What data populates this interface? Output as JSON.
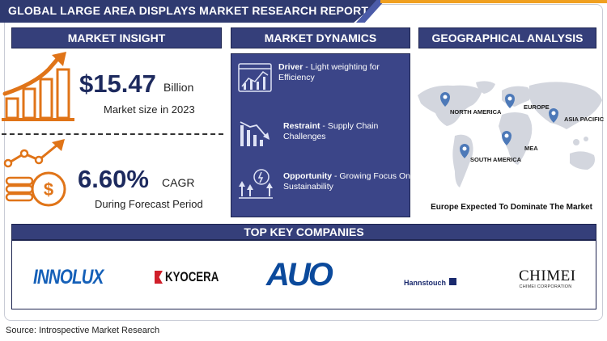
{
  "header": {
    "title": "GLOBAL LARGE AREA DISPLAYS MARKET RESEARCH REPORT"
  },
  "insight": {
    "heading": "MARKET INSIGHT",
    "market_value": "$15.47",
    "market_unit": "Billion",
    "market_caption": "Market size in 2023",
    "cagr_value": "6.60%",
    "cagr_label": "CAGR",
    "cagr_caption": "During Forecast Period"
  },
  "dynamics": {
    "heading": "MARKET DYNAMICS",
    "items": [
      {
        "label": "Driver",
        "sep": " - ",
        "text": "Light weighting for Efficiency",
        "icon": "chart-report-icon"
      },
      {
        "label": "Restraint",
        "sep": " - ",
        "text": "Supply Chain Challenges",
        "icon": "declining-chart-icon"
      },
      {
        "label": "Opportunity",
        "sep": " - ",
        "text": "Growing Focus On Sustainability",
        "icon": "growth-idea-icon"
      }
    ]
  },
  "geo": {
    "heading": "GEOGRAPHICAL ANALYSIS",
    "regions": [
      "NORTH AMERICA",
      "EUROPE",
      "ASIA PACIFIC",
      "MEA",
      "SOUTH AMERICA"
    ],
    "caption": "Europe Expected To Dominate The Market"
  },
  "companies": {
    "heading": "TOP KEY COMPANIES",
    "logos": [
      "INNOLUX",
      "KYOCERA",
      "AUO",
      "Hannstouch",
      "CHIMEI",
      "CHIMEI CORPORATION"
    ]
  },
  "footer": {
    "source": "Source: Introspective Market Research"
  },
  "colors": {
    "navy": "#2f3a70",
    "accent_orange": "#e07418",
    "panel": "#3b4588"
  }
}
